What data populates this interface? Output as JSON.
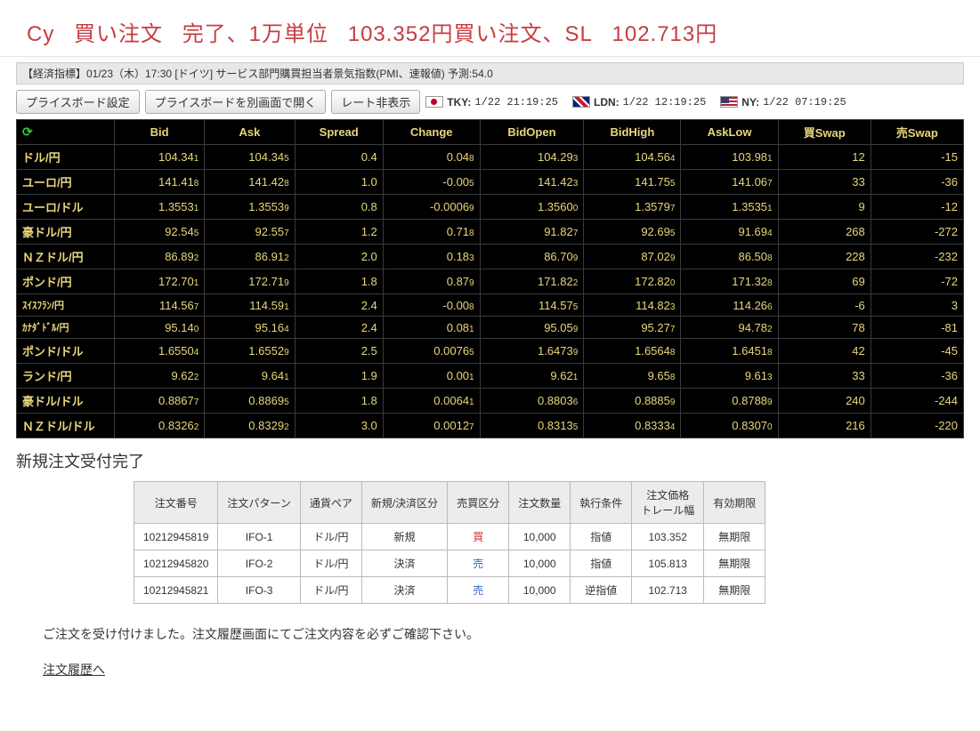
{
  "header": {
    "title_parts": [
      "Cy",
      "買い注文",
      "完了、1万単位",
      "103.352円買い注文、SL",
      "102.713円"
    ],
    "color": "#c63c40"
  },
  "indicator_bar": "【経済指標】01/23（木）17:30 [ドイツ] サービス部門購買担当者景気指数(PMI、速報値) 予測:54.0",
  "toolbar": {
    "btn_priceboard_settings": "プライスボード設定",
    "btn_priceboard_newwin": "プライスボードを別画面で開く",
    "btn_hide_rate": "レート非表示",
    "clocks": [
      {
        "flag": "jp",
        "label": "TKY:",
        "time": "1/22  21:19:25"
      },
      {
        "flag": "uk",
        "label": "LDN:",
        "time": "1/22  12:19:25"
      },
      {
        "flag": "us",
        "label": "NY:",
        "time": "1/22  07:19:25"
      }
    ]
  },
  "fx": {
    "columns": [
      "Bid",
      "Ask",
      "Spread",
      "Change",
      "BidOpen",
      "BidHigh",
      "AskLow",
      "買Swap",
      "売Swap"
    ],
    "rows": [
      {
        "pair": "ドル/円",
        "bid": [
          "104.34",
          "1"
        ],
        "ask": [
          "104.34",
          "5"
        ],
        "spread": "0.4",
        "change": [
          "0.04",
          "8"
        ],
        "bidopen": [
          "104.29",
          "3"
        ],
        "bidhigh": [
          "104.56",
          "4"
        ],
        "asklow": [
          "103.98",
          "1"
        ],
        "swap_buy": "12",
        "swap_sell": "-15"
      },
      {
        "pair": "ユーロ/円",
        "bid": [
          "141.41",
          "8"
        ],
        "ask": [
          "141.42",
          "8"
        ],
        "spread": "1.0",
        "change": [
          "-0.00",
          "5"
        ],
        "bidopen": [
          "141.42",
          "3"
        ],
        "bidhigh": [
          "141.75",
          "5"
        ],
        "asklow": [
          "141.06",
          "7"
        ],
        "swap_buy": "33",
        "swap_sell": "-36"
      },
      {
        "pair": "ユーロ/ドル",
        "bid": [
          "1.3553",
          "1"
        ],
        "ask": [
          "1.3553",
          "9"
        ],
        "spread": "0.8",
        "change": [
          "-0.0006",
          "9"
        ],
        "bidopen": [
          "1.3560",
          "0"
        ],
        "bidhigh": [
          "1.3579",
          "7"
        ],
        "asklow": [
          "1.3535",
          "1"
        ],
        "swap_buy": "9",
        "swap_sell": "-12"
      },
      {
        "pair": "豪ドル/円",
        "bid": [
          "92.54",
          "5"
        ],
        "ask": [
          "92.55",
          "7"
        ],
        "spread": "1.2",
        "change": [
          "0.71",
          "8"
        ],
        "bidopen": [
          "91.82",
          "7"
        ],
        "bidhigh": [
          "92.69",
          "5"
        ],
        "asklow": [
          "91.69",
          "4"
        ],
        "swap_buy": "268",
        "swap_sell": "-272"
      },
      {
        "pair": "ＮＺドル/円",
        "bid": [
          "86.89",
          "2"
        ],
        "ask": [
          "86.91",
          "2"
        ],
        "spread": "2.0",
        "change": [
          "0.18",
          "3"
        ],
        "bidopen": [
          "86.70",
          "9"
        ],
        "bidhigh": [
          "87.02",
          "9"
        ],
        "asklow": [
          "86.50",
          "8"
        ],
        "swap_buy": "228",
        "swap_sell": "-232"
      },
      {
        "pair": "ポンド/円",
        "bid": [
          "172.70",
          "1"
        ],
        "ask": [
          "172.71",
          "9"
        ],
        "spread": "1.8",
        "change": [
          "0.87",
          "9"
        ],
        "bidopen": [
          "171.82",
          "2"
        ],
        "bidhigh": [
          "172.82",
          "0"
        ],
        "asklow": [
          "171.32",
          "8"
        ],
        "swap_buy": "69",
        "swap_sell": "-72"
      },
      {
        "pair": "ｽｲｽﾌﾗﾝ/円",
        "small": true,
        "bid": [
          "114.56",
          "7"
        ],
        "ask": [
          "114.59",
          "1"
        ],
        "spread": "2.4",
        "change": [
          "-0.00",
          "8"
        ],
        "bidopen": [
          "114.57",
          "5"
        ],
        "bidhigh": [
          "114.82",
          "3"
        ],
        "asklow": [
          "114.26",
          "6"
        ],
        "swap_buy": "-6",
        "swap_sell": "3"
      },
      {
        "pair": "ｶﾅﾀﾞﾄﾞﾙ/円",
        "small": true,
        "bid": [
          "95.14",
          "0"
        ],
        "ask": [
          "95.16",
          "4"
        ],
        "spread": "2.4",
        "change": [
          "0.08",
          "1"
        ],
        "bidopen": [
          "95.05",
          "9"
        ],
        "bidhigh": [
          "95.27",
          "7"
        ],
        "asklow": [
          "94.78",
          "2"
        ],
        "swap_buy": "78",
        "swap_sell": "-81"
      },
      {
        "pair": "ポンド/ドル",
        "bid": [
          "1.6550",
          "4"
        ],
        "ask": [
          "1.6552",
          "9"
        ],
        "spread": "2.5",
        "change": [
          "0.0076",
          "5"
        ],
        "bidopen": [
          "1.6473",
          "9"
        ],
        "bidhigh": [
          "1.6564",
          "8"
        ],
        "asklow": [
          "1.6451",
          "8"
        ],
        "swap_buy": "42",
        "swap_sell": "-45"
      },
      {
        "pair": "ランド/円",
        "bid": [
          "9.62",
          "2"
        ],
        "ask": [
          "9.64",
          "1"
        ],
        "spread": "1.9",
        "change": [
          "0.00",
          "1"
        ],
        "bidopen": [
          "9.62",
          "1"
        ],
        "bidhigh": [
          "9.65",
          "8"
        ],
        "asklow": [
          "9.61",
          "3"
        ],
        "swap_buy": "33",
        "swap_sell": "-36"
      },
      {
        "pair": "豪ドル/ドル",
        "bid": [
          "0.8867",
          "7"
        ],
        "ask": [
          "0.8869",
          "5"
        ],
        "spread": "1.8",
        "change": [
          "0.0064",
          "1"
        ],
        "bidopen": [
          "0.8803",
          "6"
        ],
        "bidhigh": [
          "0.8885",
          "9"
        ],
        "asklow": [
          "0.8788",
          "9"
        ],
        "swap_buy": "240",
        "swap_sell": "-244"
      },
      {
        "pair": "ＮＺドル/ドル",
        "bid": [
          "0.8326",
          "2"
        ],
        "ask": [
          "0.8329",
          "2"
        ],
        "spread": "3.0",
        "change": [
          "0.0012",
          "7"
        ],
        "bidopen": [
          "0.8313",
          "5"
        ],
        "bidhigh": [
          "0.8333",
          "4"
        ],
        "asklow": [
          "0.8307",
          "0"
        ],
        "swap_buy": "216",
        "swap_sell": "-220"
      }
    ]
  },
  "order_section": {
    "title": "新規注文受付完了",
    "columns": [
      "注文番号",
      "注文パターン",
      "通貨ペア",
      "新規/決済区分",
      "売買区分",
      "注文数量",
      "執行条件",
      "注文価格\nトレール幅",
      "有効期限"
    ],
    "rows": [
      {
        "id": "10212945819",
        "pattern": "IFO-1",
        "pair": "ドル/円",
        "type": "新規",
        "side": "買",
        "side_class": "buy",
        "qty": "10,000",
        "cond": "指値",
        "price": "103.352",
        "expiry": "無期限"
      },
      {
        "id": "10212945820",
        "pattern": "IFO-2",
        "pair": "ドル/円",
        "type": "決済",
        "side": "売",
        "side_class": "sell",
        "qty": "10,000",
        "cond": "指値",
        "price": "105.813",
        "expiry": "無期限"
      },
      {
        "id": "10212945821",
        "pattern": "IFO-3",
        "pair": "ドル/円",
        "type": "決済",
        "side": "売",
        "side_class": "sell",
        "qty": "10,000",
        "cond": "逆指値",
        "price": "102.713",
        "expiry": "無期限"
      }
    ],
    "footer_text": "ご注文を受け付けました。注文履歴画面にてご注文内容を必ずご確認下さい。",
    "history_link": "注文履歴へ"
  }
}
